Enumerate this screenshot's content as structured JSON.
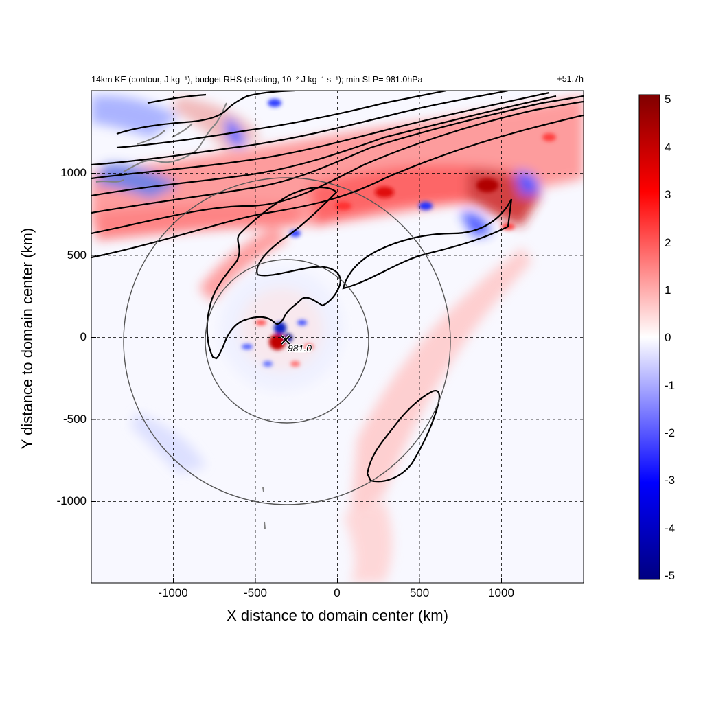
{
  "header": {
    "title": "14km KE (contour, J kg⁻¹), budget RHS (shading, 10⁻² J kg⁻¹ s⁻¹); min SLP= 981.0hPa",
    "time": "+51.7h"
  },
  "axes": {
    "xlabel": "X distance to domain center (km)",
    "ylabel": "Y distance to domain center (km)",
    "xticks": [
      "-1000",
      "-500",
      "0",
      "500",
      "1000"
    ],
    "yticks": [
      "1000",
      "500",
      "0",
      "-500",
      "-1000"
    ]
  },
  "colorbar": {
    "ticks": [
      "5",
      "4",
      "3",
      "2",
      "1",
      "0",
      "-1",
      "-2",
      "-3",
      "-4",
      "-5"
    ],
    "colors": {
      "max": "#800000",
      "high": "#ff0000",
      "zero": "#ffffff",
      "low": "#0000ff",
      "min": "#000080"
    }
  },
  "storm": {
    "center_label": "981.0",
    "marker": "x-mark-icon"
  }
}
